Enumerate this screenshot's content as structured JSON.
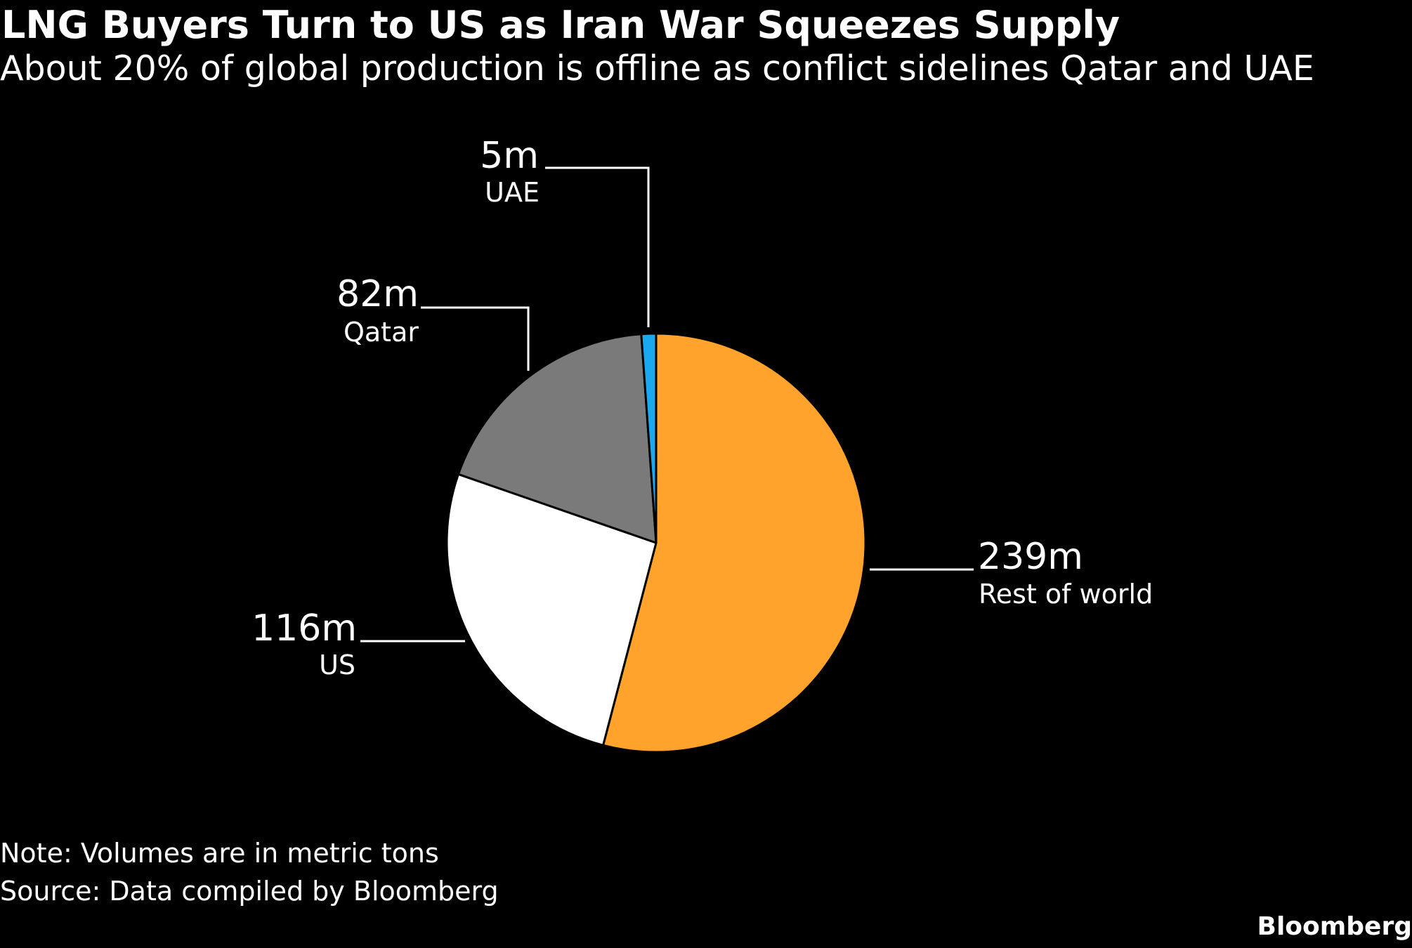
{
  "chart_data": {
    "type": "pie",
    "title": "LNG Buyers Turn to US as Iran War Squeezes Supply",
    "subtitle": "About 20% of global production is offline as conflict sidelines Qatar and UAE",
    "unit": "metric tons",
    "slices": [
      {
        "label": "Rest of world",
        "value": 239,
        "value_label": "239m",
        "color": "#ffa32c"
      },
      {
        "label": "US",
        "value": 116,
        "value_label": "116m",
        "color": "#ffffff"
      },
      {
        "label": "Qatar",
        "value": 82,
        "value_label": "82m",
        "color": "#7a7a7a"
      },
      {
        "label": "UAE",
        "value": 5,
        "value_label": "5m",
        "color": "#1aa9ee"
      }
    ],
    "start_angle_deg": 0,
    "direction": "clockwise",
    "note": "Note: Volumes are in metric tons",
    "source": "Source: Data compiled by Bloomberg"
  },
  "branding": "Bloomberg"
}
